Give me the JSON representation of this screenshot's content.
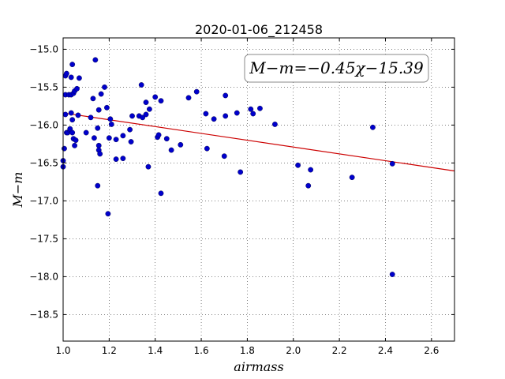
{
  "chart_data": {
    "type": "scatter",
    "title": "2020-01-06_212458",
    "xlabel": "airmass",
    "ylabel": "M−m",
    "xlim": [
      1.0,
      2.7
    ],
    "ylim": [
      -18.85,
      -14.85
    ],
    "x_ticks": [
      1.0,
      1.2,
      1.4,
      1.6,
      1.8,
      2.0,
      2.2,
      2.4,
      2.6
    ],
    "x_tick_labels": [
      "1.0",
      "1.2",
      "1.4",
      "1.6",
      "1.8",
      "2.0",
      "2.2",
      "2.4",
      "2.6"
    ],
    "y_ticks": [
      -15.0,
      -15.5,
      -16.0,
      -16.5,
      -17.0,
      -17.5,
      -18.0,
      -18.5
    ],
    "y_tick_labels": [
      "−15.0",
      "−15.5",
      "−16.0",
      "−16.5",
      "−17.0",
      "−17.5",
      "−18.0",
      "−18.5"
    ],
    "grid": true,
    "annotation": "M−m=−0.45χ−15.39",
    "fit_line": {
      "slope": -0.45,
      "intercept": -15.39,
      "x_range": [
        1.0,
        2.7
      ],
      "color": "#cc0000"
    },
    "point_color": "#0000cc",
    "points": [
      {
        "x": 1.0,
        "y": -16.55
      },
      {
        "x": 1.0,
        "y": -16.47
      },
      {
        "x": 1.005,
        "y": -16.31
      },
      {
        "x": 1.01,
        "y": -15.86
      },
      {
        "x": 1.01,
        "y": -15.6
      },
      {
        "x": 1.01,
        "y": -15.35
      },
      {
        "x": 1.015,
        "y": -15.32
      },
      {
        "x": 1.015,
        "y": -16.1
      },
      {
        "x": 1.02,
        "y": -16.1
      },
      {
        "x": 1.025,
        "y": -15.6
      },
      {
        "x": 1.03,
        "y": -16.07
      },
      {
        "x": 1.03,
        "y": -16.05
      },
      {
        "x": 1.035,
        "y": -15.84
      },
      {
        "x": 1.035,
        "y": -15.6
      },
      {
        "x": 1.035,
        "y": -15.37
      },
      {
        "x": 1.04,
        "y": -15.2
      },
      {
        "x": 1.04,
        "y": -15.93
      },
      {
        "x": 1.04,
        "y": -16.1
      },
      {
        "x": 1.045,
        "y": -16.18
      },
      {
        "x": 1.045,
        "y": -15.58
      },
      {
        "x": 1.05,
        "y": -15.55
      },
      {
        "x": 1.05,
        "y": -16.27
      },
      {
        "x": 1.055,
        "y": -16.2
      },
      {
        "x": 1.06,
        "y": -15.52
      },
      {
        "x": 1.065,
        "y": -15.87
      },
      {
        "x": 1.07,
        "y": -15.38
      },
      {
        "x": 1.1,
        "y": -16.1
      },
      {
        "x": 1.12,
        "y": -15.9
      },
      {
        "x": 1.13,
        "y": -15.65
      },
      {
        "x": 1.135,
        "y": -16.17
      },
      {
        "x": 1.14,
        "y": -15.14
      },
      {
        "x": 1.15,
        "y": -16.8
      },
      {
        "x": 1.15,
        "y": -16.04
      },
      {
        "x": 1.155,
        "y": -16.27
      },
      {
        "x": 1.155,
        "y": -15.8
      },
      {
        "x": 1.155,
        "y": -16.33
      },
      {
        "x": 1.16,
        "y": -16.38
      },
      {
        "x": 1.165,
        "y": -15.59
      },
      {
        "x": 1.18,
        "y": -15.5
      },
      {
        "x": 1.19,
        "y": -15.77
      },
      {
        "x": 1.195,
        "y": -17.17
      },
      {
        "x": 1.2,
        "y": -16.17
      },
      {
        "x": 1.205,
        "y": -15.92
      },
      {
        "x": 1.21,
        "y": -15.99
      },
      {
        "x": 1.23,
        "y": -16.45
      },
      {
        "x": 1.23,
        "y": -16.19
      },
      {
        "x": 1.26,
        "y": -16.44
      },
      {
        "x": 1.26,
        "y": -16.14
      },
      {
        "x": 1.29,
        "y": -16.06
      },
      {
        "x": 1.295,
        "y": -16.22
      },
      {
        "x": 1.3,
        "y": -15.88
      },
      {
        "x": 1.33,
        "y": -15.88
      },
      {
        "x": 1.34,
        "y": -15.47
      },
      {
        "x": 1.345,
        "y": -15.9
      },
      {
        "x": 1.36,
        "y": -15.86
      },
      {
        "x": 1.36,
        "y": -15.7
      },
      {
        "x": 1.37,
        "y": -16.55
      },
      {
        "x": 1.375,
        "y": -15.79
      },
      {
        "x": 1.4,
        "y": -15.63
      },
      {
        "x": 1.41,
        "y": -16.16
      },
      {
        "x": 1.415,
        "y": -16.13
      },
      {
        "x": 1.425,
        "y": -15.68
      },
      {
        "x": 1.425,
        "y": -16.9
      },
      {
        "x": 1.45,
        "y": -16.18
      },
      {
        "x": 1.47,
        "y": -16.33
      },
      {
        "x": 1.51,
        "y": -16.26
      },
      {
        "x": 1.545,
        "y": -15.64
      },
      {
        "x": 1.58,
        "y": -15.56
      },
      {
        "x": 1.62,
        "y": -15.85
      },
      {
        "x": 1.625,
        "y": -16.31
      },
      {
        "x": 1.655,
        "y": -15.92
      },
      {
        "x": 1.7,
        "y": -16.41
      },
      {
        "x": 1.705,
        "y": -15.88
      },
      {
        "x": 1.705,
        "y": -15.61
      },
      {
        "x": 1.755,
        "y": -15.84
      },
      {
        "x": 1.77,
        "y": -16.62
      },
      {
        "x": 1.815,
        "y": -15.79
      },
      {
        "x": 1.825,
        "y": -15.85
      },
      {
        "x": 1.855,
        "y": -15.78
      },
      {
        "x": 1.92,
        "y": -15.99
      },
      {
        "x": 2.02,
        "y": -16.53
      },
      {
        "x": 2.065,
        "y": -16.8
      },
      {
        "x": 2.075,
        "y": -16.59
      },
      {
        "x": 2.255,
        "y": -16.69
      },
      {
        "x": 2.345,
        "y": -16.03
      },
      {
        "x": 2.43,
        "y": -16.51
      },
      {
        "x": 2.43,
        "y": -17.97
      }
    ]
  }
}
